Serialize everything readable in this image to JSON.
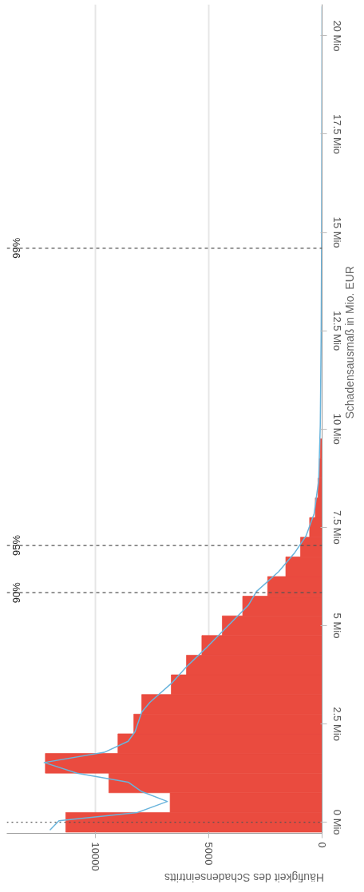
{
  "chart_data": {
    "type": "histogram",
    "orientation": "horizontal",
    "xlabel": "Häufigkeit des Schadenseintritts",
    "ylabel": "Schadensausmaß in Mio. EUR",
    "bins": [
      -0.25,
      0.25,
      0.75,
      1.25,
      1.75,
      2.25,
      2.75,
      3.25,
      3.75,
      4.25,
      4.75,
      5.25,
      5.75,
      6.25,
      6.75,
      7.25,
      7.75,
      8.25,
      8.75,
      9.25,
      9.75,
      10.25,
      10.75,
      11.25,
      11.75,
      12.25,
      12.75,
      13.25,
      13.75,
      14.25,
      14.75,
      15.25,
      15.75,
      16.25,
      16.75,
      17.25,
      17.75,
      18.25,
      18.75,
      19.25,
      19.75,
      20.25,
      20.75
    ],
    "series": [
      {
        "color": "#ea4b3f",
        "values": [
          11300,
          6700,
          9400,
          12200,
          9000,
          8300,
          7950,
          6650,
          5980,
          5300,
          4400,
          3500,
          2400,
          1600,
          950,
          550,
          300,
          180,
          120,
          80,
          null,
          null,
          null,
          null,
          null,
          null,
          null,
          null,
          null,
          null,
          null,
          null,
          null,
          null,
          null,
          null,
          null,
          null,
          null,
          null,
          null,
          null
        ]
      },
      {
        "type": "line",
        "color": "#6ab4dc",
        "x": [
          -0.2,
          0.04,
          0.25,
          0.53,
          0.78,
          1.02,
          1.25,
          1.52,
          1.78,
          2.06,
          2.3,
          2.8,
          3.05,
          3.54,
          3.96,
          4.46,
          5.03,
          5.52,
          5.87,
          6.37,
          6.86,
          7.28,
          7.85,
          8.7,
          10.1,
          12.5,
          15,
          17.5,
          20.75
        ],
        "values": [
          12000,
          11600,
          8140,
          6820,
          7950,
          8550,
          10800,
          12250,
          9600,
          8550,
          8250,
          7950,
          7590,
          6630,
          5970,
          5060,
          4090,
          3250,
          2890,
          1920,
          1200,
          710,
          350,
          150,
          80,
          40,
          20,
          10,
          0
        ]
      }
    ],
    "xlim": [
      13900,
      0
    ],
    "xticks": [
      0,
      5000,
      10000
    ],
    "ylim": [
      -0.28,
      20.8
    ],
    "yticks": [
      {
        "value": 0,
        "label": "0 Mio"
      },
      {
        "value": 2.5,
        "label": "2.5 Mio"
      },
      {
        "value": 5,
        "label": "5 Mio"
      },
      {
        "value": 7.5,
        "label": "7.5 Mio"
      },
      {
        "value": 10,
        "label": "10 Mio"
      },
      {
        "value": 12.5,
        "label": "12.5 Mio"
      },
      {
        "value": 15,
        "label": "15 Mio"
      },
      {
        "value": 17.5,
        "label": "17.5 Mio"
      },
      {
        "value": 20,
        "label": "20 Mio"
      }
    ],
    "grid": "x",
    "ref_lines": [
      {
        "axis": "y",
        "value": 0,
        "label": null,
        "line_style": "dotted",
        "color": "#555555"
      },
      {
        "axis": "y",
        "value": 5.84,
        "label": null,
        "line_style": "dashed",
        "color": "#555555"
      },
      {
        "axis": "y",
        "value": 7.04,
        "label": null,
        "line_style": "dashed",
        "color": "#555555"
      },
      {
        "axis": "y",
        "value": 14.6,
        "label": null,
        "line_style": "dashed",
        "color": "#555555"
      }
    ],
    "annotations": [
      {
        "text": "90%",
        "y": 5.84
      },
      {
        "text": "95%",
        "y": 7.04
      },
      {
        "text": "99%",
        "y": 14.6
      }
    ]
  }
}
